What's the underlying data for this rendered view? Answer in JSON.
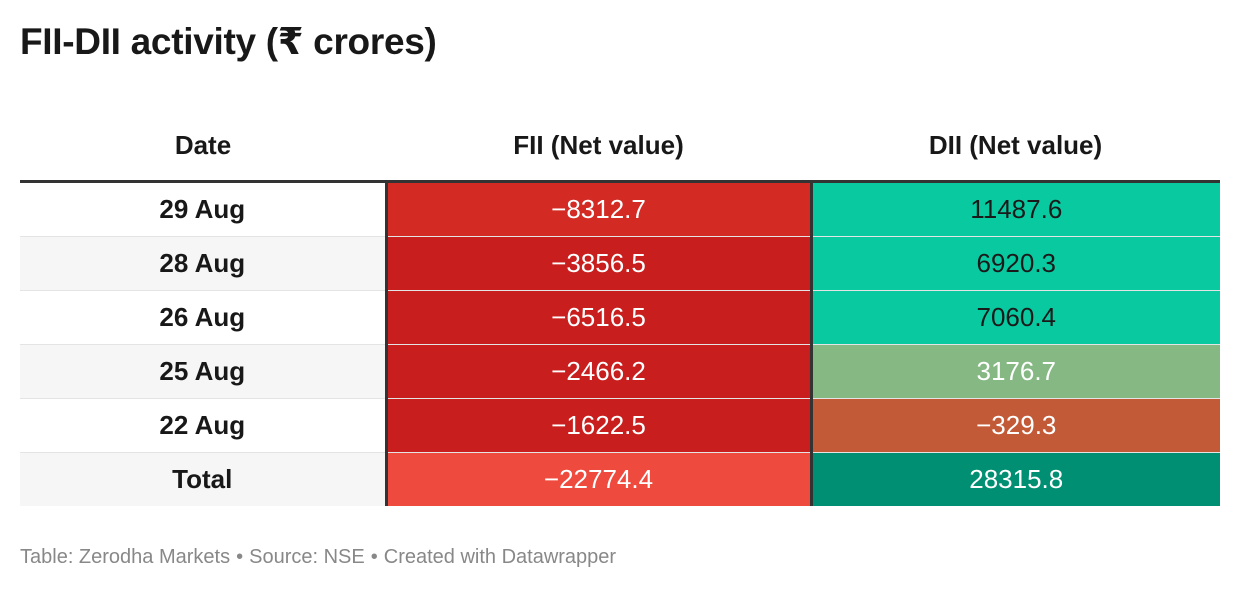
{
  "title": "FII-DII activity (₹ crores)",
  "footer": {
    "table_label": "Table: Zerodha Markets",
    "source": "Source: NSE",
    "created_with": "Created with Datawrapper",
    "separator": "•"
  },
  "chart_data": {
    "type": "table",
    "title": "FII-DII activity (₹ crores)",
    "columns": [
      "Date",
      "FII (Net value)",
      "DII (Net value)"
    ],
    "rows": [
      {
        "date": "29 Aug",
        "fii": "−8312.7",
        "dii": "11487.6",
        "fii_color": "#d32a24",
        "dii_color": "#08c9a0",
        "dii_text_light": false
      },
      {
        "date": "28 Aug",
        "fii": "−3856.5",
        "dii": "6920.3",
        "fii_color": "#c81e1d",
        "dii_color": "#08c9a0",
        "dii_text_light": false
      },
      {
        "date": "26 Aug",
        "fii": "−6516.5",
        "dii": "7060.4",
        "fii_color": "#c81e1d",
        "dii_color": "#08c9a0",
        "dii_text_light": false
      },
      {
        "date": "25 Aug",
        "fii": "−2466.2",
        "dii": "3176.7",
        "fii_color": "#c81e1d",
        "dii_color": "#86b884",
        "dii_text_light": true
      },
      {
        "date": "22 Aug",
        "fii": "−1622.5",
        "dii": "−329.3",
        "fii_color": "#c81e1d",
        "dii_color": "#c25a37",
        "dii_text_light": true
      },
      {
        "date": "Total",
        "fii": "−22774.4",
        "dii": "28315.8",
        "fii_color": "#ef4a3e",
        "dii_color": "#008f73",
        "dii_text_light": true
      }
    ],
    "values": {
      "fii": [
        -8312.7,
        -3856.5,
        -6516.5,
        -2466.2,
        -1622.5,
        -22774.4
      ],
      "dii": [
        11487.6,
        6920.3,
        7060.4,
        3176.7,
        -329.3,
        28315.8
      ]
    }
  }
}
